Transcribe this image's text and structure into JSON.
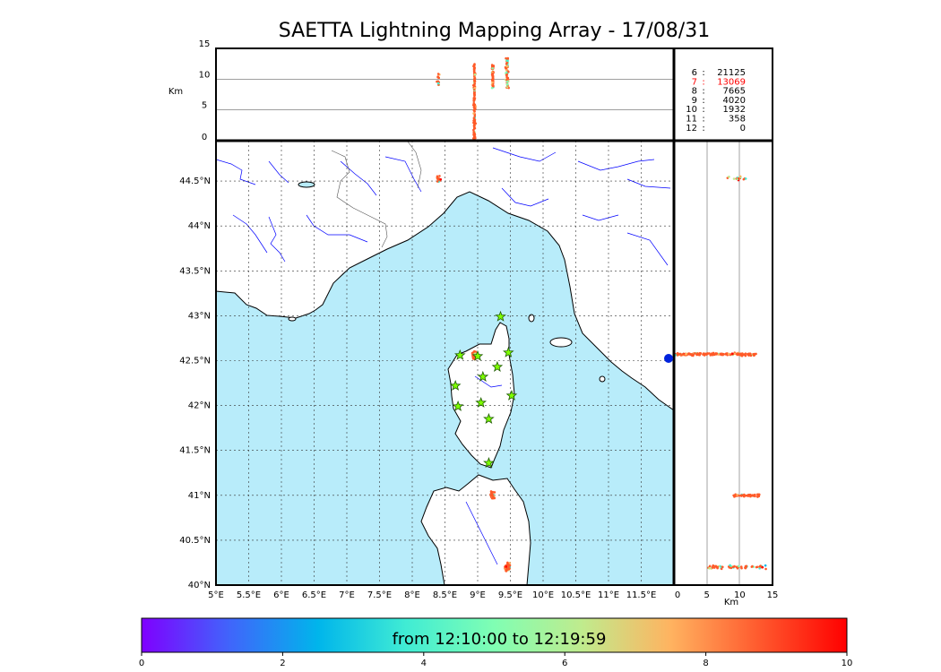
{
  "title": "SAETTA Lightning Mapping Array - 17/08/31",
  "colors": {
    "sea": "#b8ecfa",
    "land": "#ffffff",
    "river": "#0000ff",
    "coast": "#000000",
    "station_fill": "#7fff00",
    "station_stroke": "#1e5a00",
    "highlight": "#ff0000",
    "lightning": "#ff5a28"
  },
  "chart_data": [
    {
      "type": "scatter",
      "panel": "map",
      "xlabel": "",
      "ylabel": "",
      "xlim": [
        5.0,
        12.0
      ],
      "ylim": [
        40.0,
        44.95
      ],
      "x_ticks": [
        "5°E",
        "5.5°E",
        "6°E",
        "6.5°E",
        "7°E",
        "7.5°E",
        "8°E",
        "8.5°E",
        "9°E",
        "9.5°E",
        "10°E",
        "10.5°E",
        "11°E",
        "11.5°E"
      ],
      "y_ticks": [
        "40°N",
        "40.5°N",
        "41°N",
        "41.5°N",
        "42°N",
        "42.5°N",
        "43°N",
        "43.5°N",
        "44°N",
        "44.5°N"
      ],
      "grid": true,
      "stations": [
        {
          "lon": 9.35,
          "lat": 42.99
        },
        {
          "lon": 8.73,
          "lat": 42.56
        },
        {
          "lon": 9.0,
          "lat": 42.55
        },
        {
          "lon": 9.47,
          "lat": 42.59
        },
        {
          "lon": 9.3,
          "lat": 42.43
        },
        {
          "lon": 9.08,
          "lat": 42.32
        },
        {
          "lon": 8.66,
          "lat": 42.22
        },
        {
          "lon": 9.52,
          "lat": 42.11
        },
        {
          "lon": 8.7,
          "lat": 41.99
        },
        {
          "lon": 9.05,
          "lat": 42.03
        },
        {
          "lon": 9.17,
          "lat": 41.85
        },
        {
          "lon": 9.17,
          "lat": 41.36
        }
      ],
      "clusters": [
        {
          "lon": 8.95,
          "lat": 42.56,
          "spread": 0.04,
          "n": 90
        },
        {
          "lon": 9.23,
          "lat": 41.0,
          "spread": 0.05,
          "n": 45
        },
        {
          "lon": 9.45,
          "lat": 40.2,
          "spread": 0.05,
          "n": 50
        },
        {
          "lon": 8.4,
          "lat": 44.53,
          "spread": 0.05,
          "n": 14
        }
      ]
    },
    {
      "type": "scatter",
      "panel": "altitude-longitude",
      "ylabel": "Km",
      "xlim": [
        5.0,
        12.0
      ],
      "ylim": [
        0,
        15
      ],
      "y_ticks": [
        "0",
        "5",
        "10",
        "15"
      ]
    },
    {
      "type": "scatter",
      "panel": "latitude-altitude",
      "xlabel": "Km",
      "xlim": [
        0,
        15
      ],
      "ylim": [
        40.0,
        44.95
      ],
      "x_ticks": [
        "0",
        "5",
        "10",
        "15"
      ]
    },
    {
      "type": "table",
      "panel": "station-counts",
      "rows": [
        {
          "stations": "6",
          "count": "21125",
          "highlight": false
        },
        {
          "stations": "7",
          "count": "13069",
          "highlight": true
        },
        {
          "stations": "8",
          "count": "7665",
          "highlight": false
        },
        {
          "stations": "9",
          "count": "4020",
          "highlight": false
        },
        {
          "stations": "10",
          "count": "1932",
          "highlight": false
        },
        {
          "stations": "11",
          "count": "358",
          "highlight": false
        },
        {
          "stations": "12",
          "count": "0",
          "highlight": false
        }
      ]
    },
    {
      "type": "heatmap",
      "panel": "time-colorbar",
      "label": "from 12:10:00 to 12:19:59",
      "range": [
        0,
        10
      ],
      "ticks": [
        "0",
        "2",
        "4",
        "6",
        "8",
        "10"
      ],
      "colormap": [
        "#7f00ff",
        "#4065fb",
        "#00b5eb",
        "#40ecd4",
        "#80feb3",
        "#c0eb8d",
        "#ffb360",
        "#ff5a2e",
        "#ff0000"
      ]
    }
  ]
}
